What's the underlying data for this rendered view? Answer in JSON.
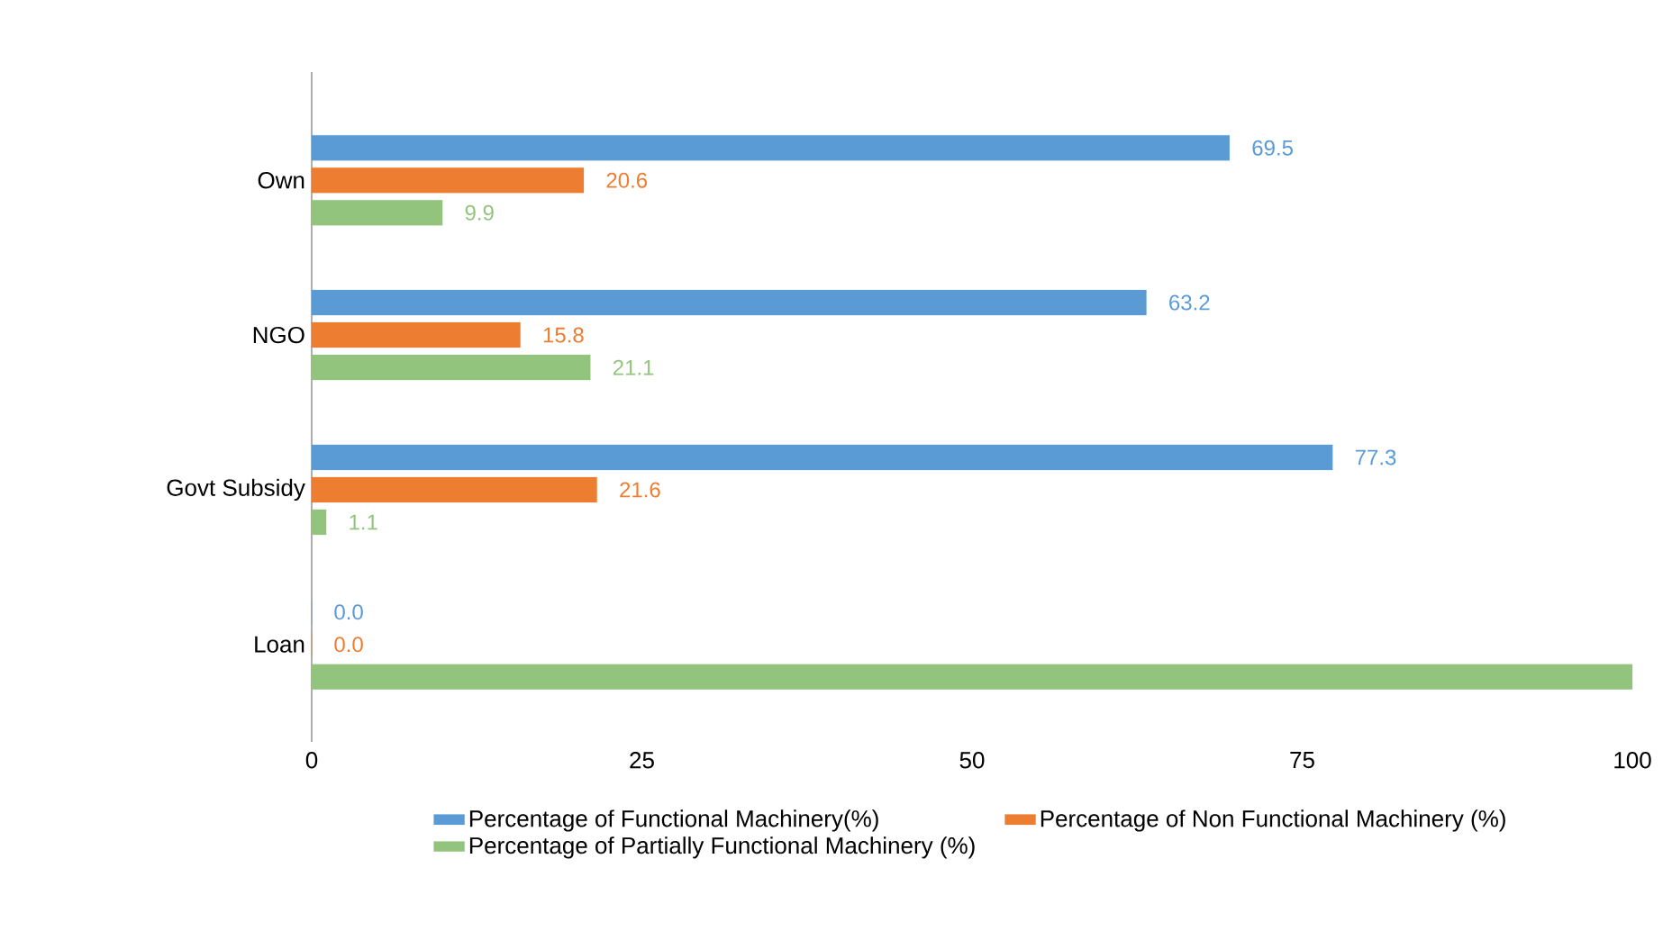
{
  "chart_data": {
    "type": "bar",
    "orientation": "horizontal",
    "categories": [
      "Own",
      "NGO",
      "Govt Subsidy",
      "Loan"
    ],
    "series": [
      {
        "name": "Percentage of Functional Machinery(%)",
        "color": "#5b9bd5",
        "values": [
          69.5,
          63.2,
          77.3,
          0.0
        ],
        "value_labels": [
          "69.5",
          "63.2",
          "77.3",
          "0.0"
        ]
      },
      {
        "name": "Percentage of Non Functional Machinery (%)",
        "color": "#ed7d31",
        "values": [
          20.6,
          15.8,
          21.6,
          0.0
        ],
        "value_labels": [
          "20.6",
          "15.8",
          "21.6",
          "0.0"
        ]
      },
      {
        "name": "Percentage of Partially Functional Machinery (%)",
        "color": "#93c47d",
        "values": [
          9.9,
          21.1,
          1.1,
          100
        ],
        "value_labels": [
          "9.9",
          "21.1",
          "1.1",
          null
        ]
      }
    ],
    "xlim": [
      0,
      100
    ],
    "xticks": [
      0,
      25,
      50,
      75,
      100
    ],
    "grid": false,
    "legend": "bottom"
  }
}
